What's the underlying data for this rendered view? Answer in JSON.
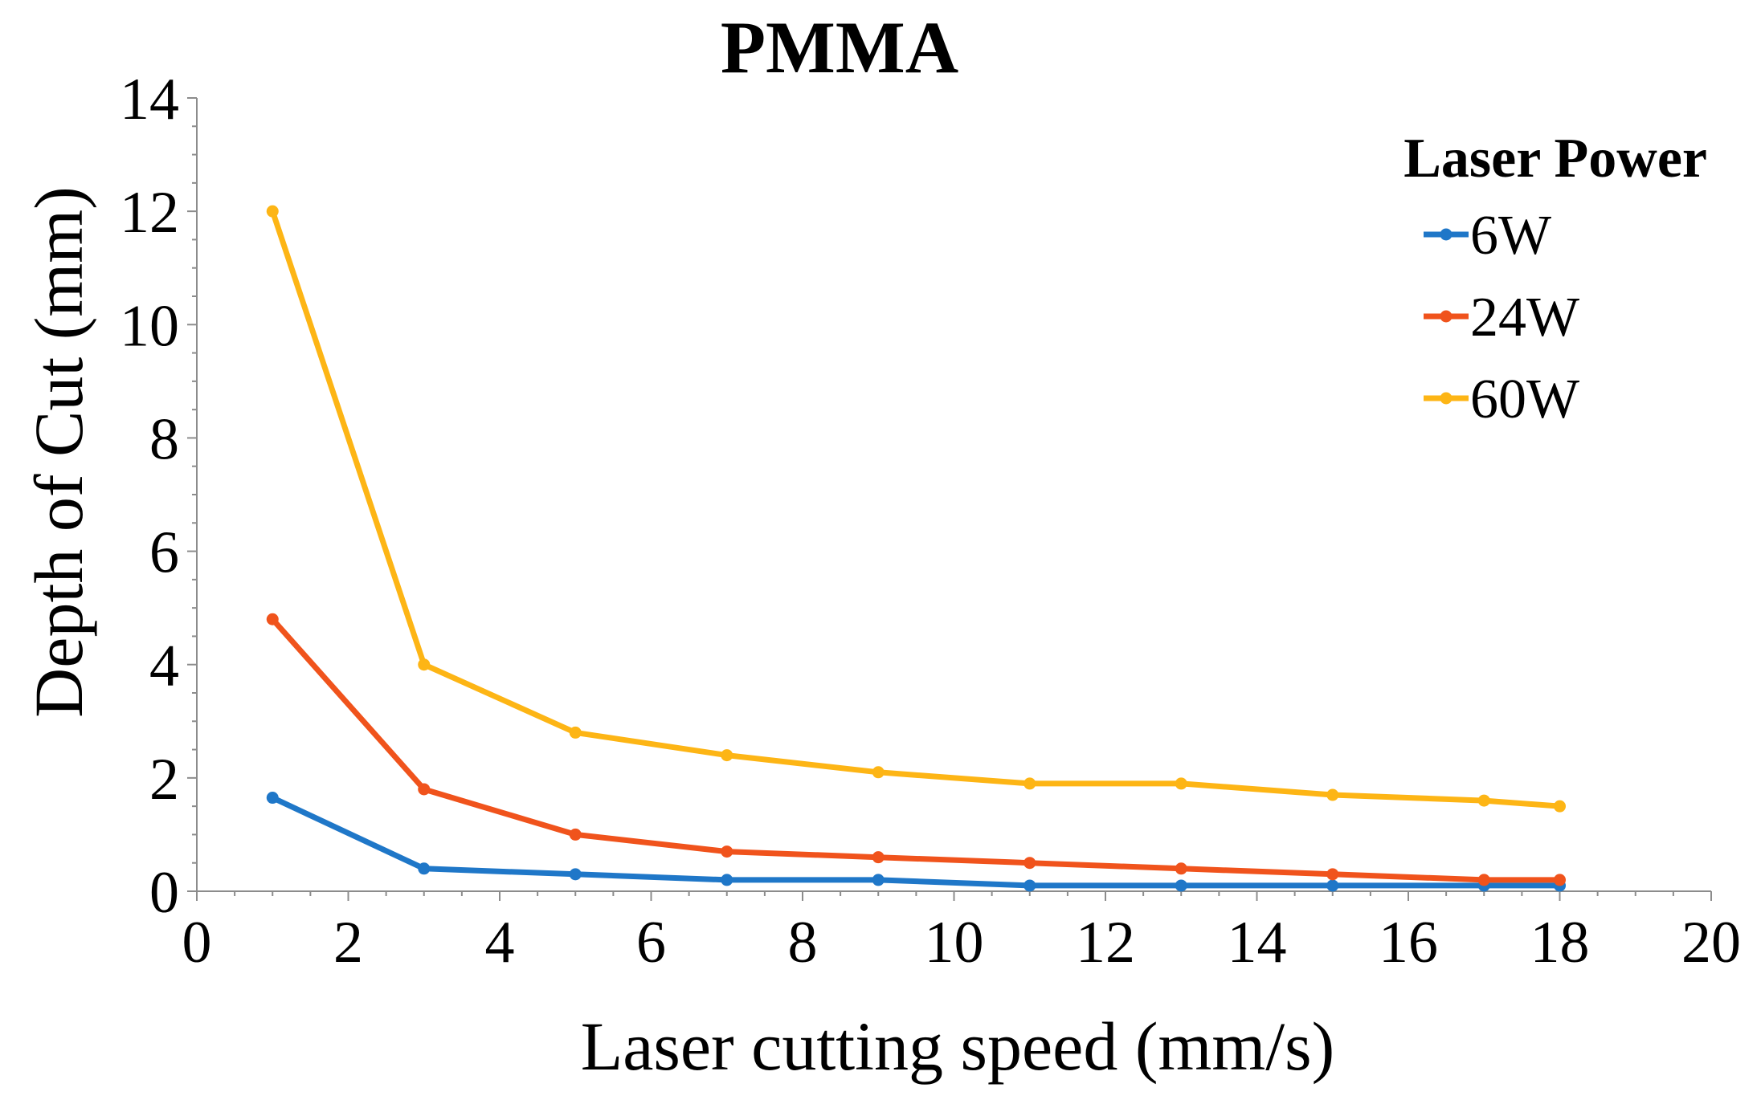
{
  "chart_data": {
    "type": "line",
    "title": "PMMA",
    "xlabel": "Laser cutting speed (mm/s)",
    "ylabel": "Depth of Cut (mm)",
    "xlim": [
      0,
      20
    ],
    "ylim": [
      0,
      14
    ],
    "xticks": [
      0,
      2,
      4,
      6,
      8,
      10,
      12,
      14,
      16,
      18,
      20
    ],
    "yticks": [
      0,
      2,
      4,
      6,
      8,
      10,
      12,
      14
    ],
    "x": [
      1,
      3,
      5,
      7,
      9,
      11,
      13,
      15,
      17,
      18
    ],
    "legend_title": "Laser Power",
    "legend_position": "top-right",
    "grid": false,
    "series": [
      {
        "name": "6W",
        "color": "#1F77C8",
        "values": [
          1.65,
          0.4,
          0.3,
          0.2,
          0.2,
          0.1,
          0.1,
          0.1,
          0.1,
          0.1
        ]
      },
      {
        "name": "24W",
        "color": "#F0531C",
        "values": [
          4.8,
          1.8,
          1.0,
          0.7,
          0.6,
          0.5,
          0.4,
          0.3,
          0.2,
          0.2
        ]
      },
      {
        "name": "60W",
        "color": "#FDB515",
        "values": [
          12.0,
          4.0,
          2.8,
          2.4,
          2.1,
          1.9,
          1.9,
          1.7,
          1.6,
          1.5
        ]
      }
    ]
  }
}
